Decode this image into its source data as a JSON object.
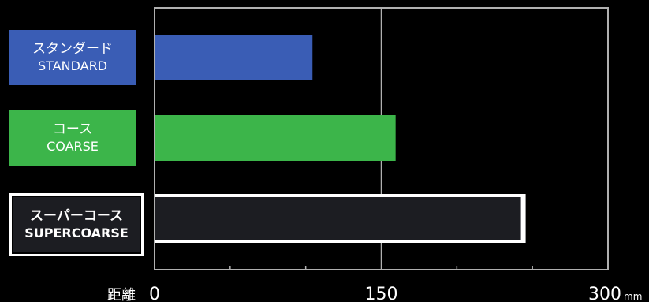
{
  "chart_data": {
    "type": "bar",
    "orientation": "horizontal",
    "categories": [
      {
        "jp": "スタンダード",
        "en": "STANDARD",
        "color": "#3a5db5",
        "style": "filled"
      },
      {
        "jp": "コース",
        "en": "COARSE",
        "color": "#3cb54a",
        "style": "filled"
      },
      {
        "jp": "スーパーコース",
        "en": "SUPERCOARSE",
        "color": "#1c1d22",
        "style": "outlined"
      }
    ],
    "values": [
      105,
      160,
      245
    ],
    "xlim": [
      0,
      300
    ],
    "major_ticks": [
      0,
      150,
      300
    ],
    "minor_ticks": [
      50,
      100,
      200,
      250
    ],
    "tick_labels": [
      "0",
      "150",
      "300"
    ],
    "xlabel": "距離",
    "unit": "mm",
    "grid": true
  },
  "colors": {
    "background": "#000000",
    "axis": "#b0b0b0",
    "text": "#ffffff",
    "outline": "#ffffff"
  }
}
